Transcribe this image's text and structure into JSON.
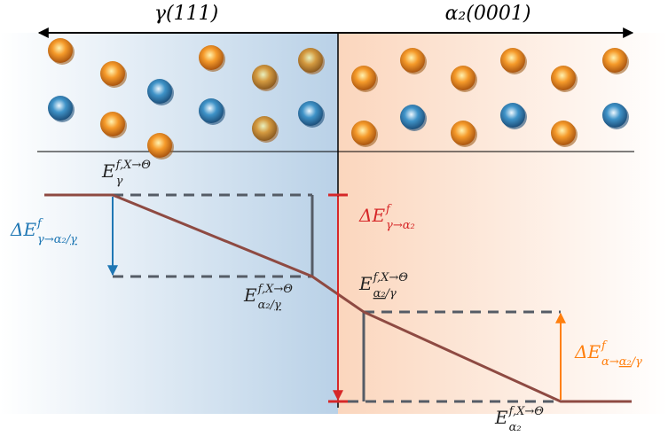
{
  "header": {
    "left": "γ(111)",
    "right": "α₂(0001)"
  },
  "labels": {
    "e_gamma": {
      "base": "E",
      "sup": "f,X→Θ",
      "sub": [
        {
          "text": "γ"
        }
      ]
    },
    "de_gamma": {
      "base": "ΔE",
      "sup": "f",
      "sub": [
        {
          "text": "γ→α₂/"
        },
        {
          "text": "γ",
          "underline": true
        }
      ]
    },
    "de_red": {
      "base": "ΔE",
      "sup": "f",
      "sub": [
        {
          "text": "γ→α₂"
        }
      ]
    },
    "e_a2_gamma_u": {
      "base": "E",
      "sup": "f,X→Θ",
      "sub": [
        {
          "text": "α₂/"
        },
        {
          "text": "γ",
          "underline": true
        }
      ]
    },
    "e_a2u_gamma": {
      "base": "E",
      "sup": "f,X→Θ",
      "sub": [
        {
          "text": "α₂",
          "underline": true
        },
        {
          "text": "/γ"
        }
      ]
    },
    "de_alpha": {
      "base": "ΔE",
      "sup": "f",
      "sub": [
        {
          "text": "α→"
        },
        {
          "text": "α₂",
          "underline": true
        },
        {
          "text": "/γ"
        }
      ]
    },
    "e_a2": {
      "base": "E",
      "sup": "f,X→Θ",
      "sub": [
        {
          "text": "α₂"
        }
      ]
    }
  }
}
